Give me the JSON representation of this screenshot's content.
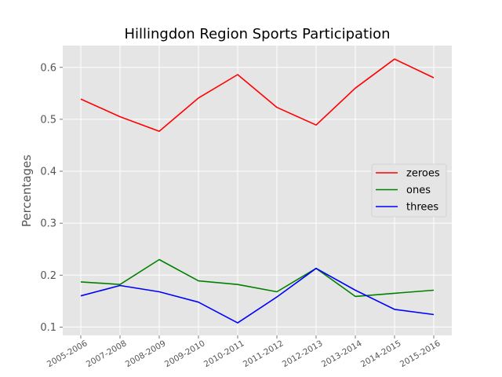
{
  "chart_data": {
    "type": "line",
    "title": "Hillingdon Region Sports Participation",
    "xlabel": "",
    "ylabel": "Percentages",
    "categories": [
      "2005-2006",
      "2007-2008",
      "2008-2009",
      "2009-2010",
      "2010-2011",
      "2011-2012",
      "2012-2013",
      "2013-2014",
      "2014-2015",
      "2015-2016"
    ],
    "series": [
      {
        "name": "zeroes",
        "color": "#ff0000",
        "values": [
          0.539,
          0.505,
          0.477,
          0.541,
          0.586,
          0.523,
          0.489,
          0.56,
          0.616,
          0.58
        ]
      },
      {
        "name": "ones",
        "color": "#008000",
        "values": [
          0.187,
          0.182,
          0.23,
          0.189,
          0.182,
          0.168,
          0.213,
          0.159,
          0.165,
          0.171
        ]
      },
      {
        "name": "threes",
        "color": "#0000ff",
        "values": [
          0.16,
          0.18,
          0.168,
          0.148,
          0.108,
          0.158,
          0.213,
          0.171,
          0.134,
          0.124
        ]
      }
    ],
    "ylim": [
      0.084,
      0.642
    ],
    "yticks": [
      "0.1",
      "0.2",
      "0.3",
      "0.4",
      "0.5",
      "0.6"
    ],
    "grid": true,
    "legend": "center-right"
  }
}
